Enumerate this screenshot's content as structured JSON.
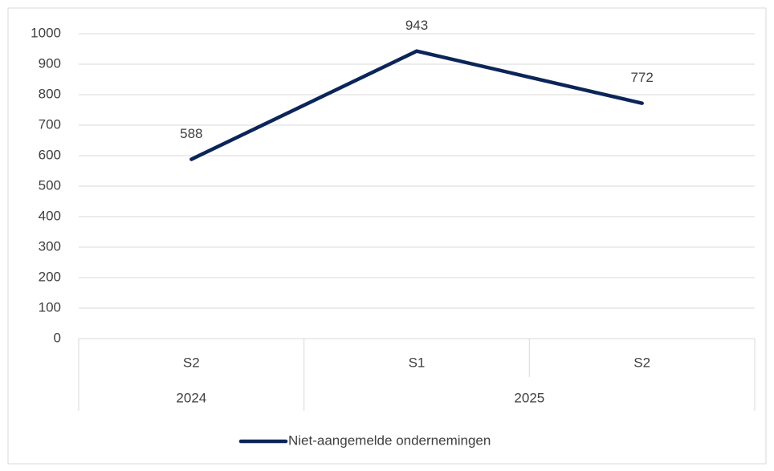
{
  "chart_data": {
    "type": "line",
    "groups": [
      {
        "name": "2024",
        "categories": [
          "S2"
        ]
      },
      {
        "name": "2025",
        "categories": [
          "S1",
          "S2"
        ]
      }
    ],
    "series": [
      {
        "name": "Niet-aangemelde ondernemingen",
        "color": "#0b2559",
        "values": [
          588,
          943,
          772
        ]
      }
    ],
    "ylim": [
      0,
      1000
    ],
    "yticks": [
      0,
      100,
      200,
      300,
      400,
      500,
      600,
      700,
      800,
      900,
      1000
    ],
    "grid": true,
    "data_labels": true,
    "legend": "bottom"
  }
}
